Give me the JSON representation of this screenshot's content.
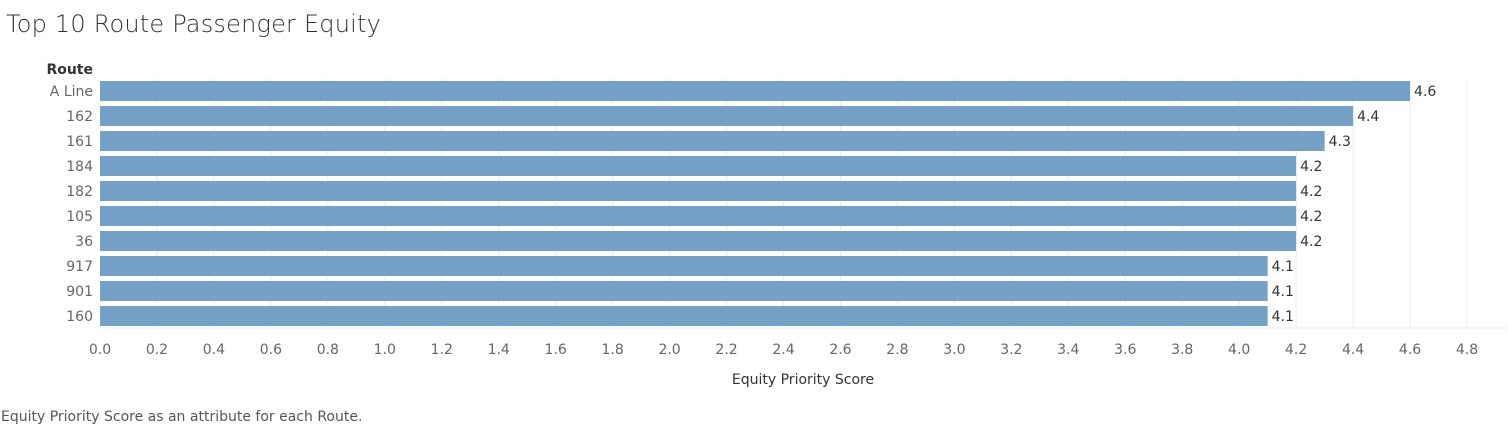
{
  "title": "Top 10 Route Passenger Equity",
  "caption": "Equity Priority Score as an attribute for each Route.",
  "colors": {
    "bar": "#75a1c7",
    "grid": "#ececec",
    "text": "#333333",
    "tick": "#666666"
  },
  "chart_data": {
    "type": "bar",
    "orientation": "horizontal",
    "row_header": "Route",
    "xlabel": "Equity Priority Score",
    "xlim": [
      0,
      4.8
    ],
    "xticks": [
      "0.0",
      "0.2",
      "0.4",
      "0.6",
      "0.8",
      "1.0",
      "1.2",
      "1.4",
      "1.6",
      "1.8",
      "2.0",
      "2.2",
      "2.4",
      "2.6",
      "2.8",
      "3.0",
      "3.2",
      "3.4",
      "3.6",
      "3.8",
      "4.0",
      "4.2",
      "4.4",
      "4.6",
      "4.8"
    ],
    "grid": true,
    "categories": [
      "A Line",
      "162",
      "161",
      "184",
      "182",
      "105",
      "36",
      "917",
      "901",
      "160"
    ],
    "values": [
      4.6,
      4.4,
      4.3,
      4.2,
      4.2,
      4.2,
      4.2,
      4.1,
      4.1,
      4.1
    ],
    "value_labels": [
      "4.6",
      "4.4",
      "4.3",
      "4.2",
      "4.2",
      "4.2",
      "4.2",
      "4.1",
      "4.1",
      "4.1"
    ]
  }
}
